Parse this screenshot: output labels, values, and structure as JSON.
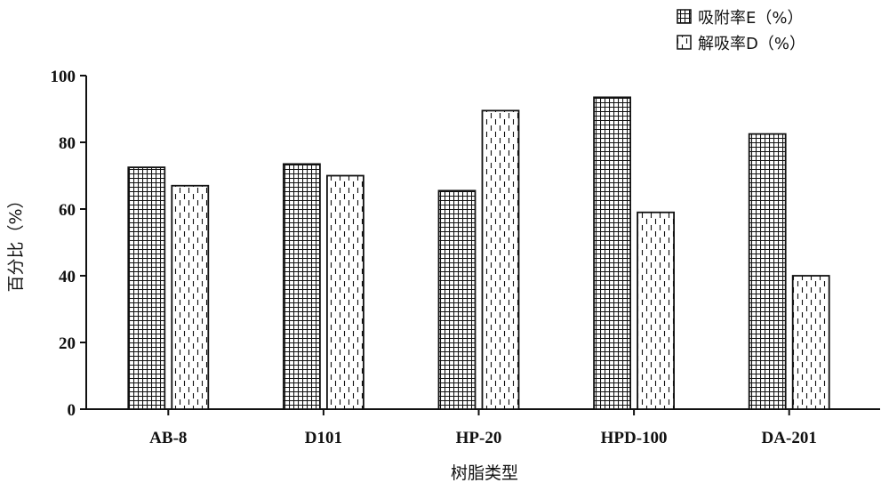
{
  "chart_data": {
    "type": "bar",
    "categories": [
      "AB-8",
      "D101",
      "HP-20",
      "HPD-100",
      "DA-201"
    ],
    "series": [
      {
        "name": "吸附率E（%）",
        "values": [
          72.5,
          73.5,
          65.5,
          93.5,
          82.5
        ],
        "pattern": "grid"
      },
      {
        "name": "解吸率D（%）",
        "values": [
          67,
          70,
          89.5,
          59,
          40
        ],
        "pattern": "dashed"
      }
    ],
    "xlabel": "树脂类型",
    "ylabel": "百分比（%）",
    "ylim": [
      0,
      100
    ],
    "yticks": [
      "0",
      "20",
      "40",
      "60",
      "80",
      "100"
    ],
    "grid": false,
    "legend_position": "top-right",
    "colors": {
      "bar_stroke": "#111111",
      "bar_fill": "#ffffff",
      "axis": "#111111"
    }
  }
}
